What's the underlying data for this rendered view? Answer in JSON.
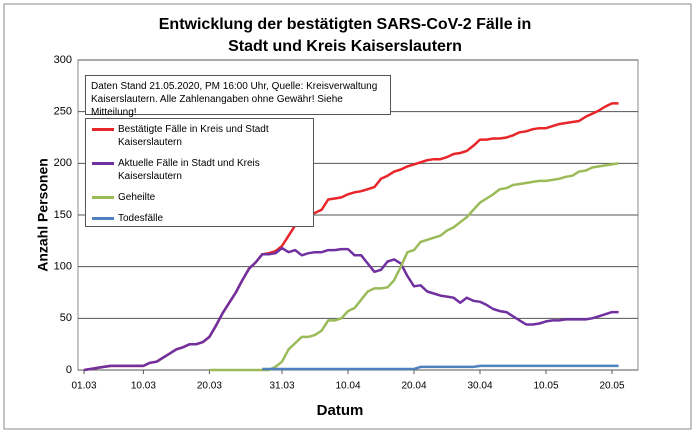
{
  "chart_data": {
    "type": "line",
    "title": "Entwicklung der bestätigten SARS-CoV-2 Fälle in Stadt und Kreis Kaiserslautern",
    "x_label": "Datum",
    "y_label": "Anzahl Personen",
    "annotation": [
      "Daten Stand 21.05.2020, PM 16:00 Uhr, Quelle: Kreisverwaltung",
      "Kaiserslautern. Alle Zahlenangaben ohne Gewähr! Siehe Mitteilung!"
    ],
    "categories": [
      "01.03",
      null,
      null,
      null,
      null,
      null,
      null,
      null,
      null,
      "10.03",
      null,
      null,
      null,
      null,
      null,
      null,
      null,
      null,
      null,
      "20.03",
      null,
      null,
      null,
      null,
      null,
      null,
      null,
      null,
      null,
      null,
      "31.03",
      null,
      null,
      null,
      null,
      null,
      null,
      null,
      null,
      null,
      "10.04",
      null,
      null,
      null,
      null,
      null,
      null,
      null,
      null,
      null,
      "20.04",
      null,
      null,
      null,
      null,
      null,
      null,
      null,
      null,
      null,
      "30.04",
      null,
      null,
      null,
      null,
      null,
      null,
      null,
      null,
      null,
      "10.05",
      null,
      null,
      null,
      null,
      null,
      null,
      null,
      null,
      null,
      "20.05",
      null
    ],
    "ylim": [
      0,
      300
    ],
    "yticks": [
      0,
      50,
      100,
      150,
      200,
      250,
      300
    ],
    "grid": true,
    "series": [
      {
        "name": "Bestätigte Fälle in Kreis und Stadt Kaiserslautern",
        "color": "#e8262a",
        "values": [
          0,
          1,
          2,
          3,
          4,
          4,
          4,
          4,
          4,
          4,
          7,
          8,
          12,
          16,
          20,
          22,
          25,
          25,
          27,
          32,
          43,
          55,
          65,
          75,
          87,
          98,
          104,
          112,
          113,
          115,
          120,
          130,
          140,
          147,
          150,
          152,
          155,
          165,
          166,
          167,
          170,
          172,
          173,
          175,
          177,
          185,
          188,
          192,
          194,
          197,
          199,
          201,
          203,
          204,
          204,
          206,
          209,
          210,
          212,
          217,
          223,
          223,
          224,
          224,
          225,
          227,
          230,
          231,
          233,
          234,
          234,
          236,
          238,
          239,
          240,
          241,
          245,
          248,
          251,
          255,
          258,
          258
        ]
      },
      {
        "name": "Aktuelle Fälle in Stadt und Kreis Kaiserslautern",
        "color": "#7030a0",
        "values": [
          0,
          1,
          2,
          3,
          4,
          4,
          4,
          4,
          4,
          4,
          7,
          8,
          12,
          16,
          20,
          22,
          25,
          25,
          27,
          32,
          43,
          55,
          65,
          75,
          87,
          98,
          104,
          112,
          112,
          113,
          118,
          114,
          116,
          111,
          113,
          114,
          114,
          116,
          116,
          117,
          117,
          111,
          111,
          103,
          95,
          97,
          105,
          107,
          103,
          91,
          81,
          82,
          76,
          74,
          72,
          71,
          70,
          65,
          70,
          67,
          66,
          63,
          59,
          57,
          56,
          52,
          48,
          44,
          44,
          45,
          47,
          48,
          48,
          49,
          49,
          49,
          49,
          50,
          52,
          54,
          56,
          56
        ]
      },
      {
        "name": "Geheilte",
        "color": "#9bbb59",
        "values": [
          null,
          null,
          null,
          null,
          null,
          null,
          null,
          null,
          null,
          null,
          null,
          null,
          null,
          null,
          null,
          null,
          null,
          null,
          null,
          0,
          0,
          0,
          0,
          0,
          0,
          0,
          0,
          0,
          0,
          3,
          8,
          20,
          26,
          32,
          32,
          34,
          38,
          48,
          48,
          50,
          57,
          60,
          68,
          76,
          79,
          79,
          80,
          87,
          100,
          114,
          116,
          124,
          126,
          128,
          130,
          135,
          138,
          143,
          148,
          155,
          162,
          166,
          170,
          175,
          176,
          179,
          180,
          181,
          182,
          183,
          183,
          184,
          185,
          187,
          188,
          192,
          193,
          196,
          197,
          198,
          199,
          200
        ]
      },
      {
        "name": "Todesfälle",
        "color": "#4f81bd",
        "values": [
          null,
          null,
          null,
          null,
          null,
          null,
          null,
          null,
          null,
          null,
          null,
          null,
          null,
          null,
          null,
          null,
          null,
          null,
          null,
          null,
          null,
          null,
          null,
          null,
          null,
          null,
          null,
          1,
          1,
          1,
          1,
          1,
          1,
          1,
          1,
          1,
          1,
          1,
          1,
          1,
          1,
          1,
          1,
          1,
          1,
          1,
          1,
          1,
          1,
          1,
          1,
          3,
          3,
          3,
          3,
          3,
          3,
          3,
          3,
          3,
          4,
          4,
          4,
          4,
          4,
          4,
          4,
          4,
          4,
          4,
          4,
          4,
          4,
          4,
          4,
          4,
          4,
          4,
          4,
          4,
          4,
          4
        ]
      }
    ]
  }
}
